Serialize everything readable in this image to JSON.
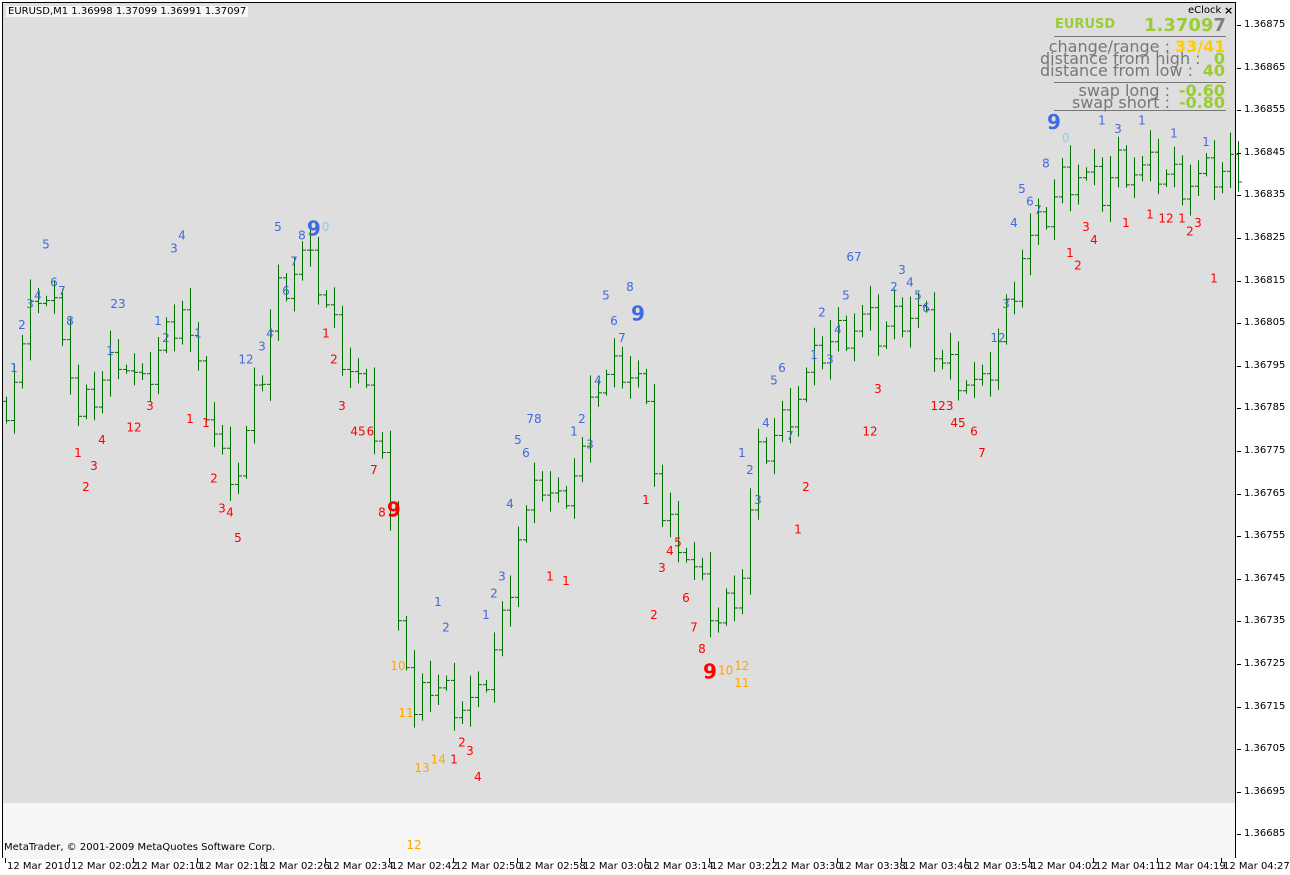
{
  "header": {
    "symbol_line": "EURUSD,M1  1.36998 1.37099 1.36991 1.37097"
  },
  "footer": {
    "copyright": "MetaTrader, © 2001-2009 MetaQuotes Software Corp."
  },
  "panel": {
    "title": "eClock",
    "close_icon": "close-x-icon",
    "symbol": "EURUSD",
    "price_main": "1.3709",
    "price_last_digit": "7",
    "rows": [
      {
        "label": "change/range :",
        "value": "33/41",
        "color": "#ffcc00"
      },
      {
        "label": "distance from high :",
        "value": "0",
        "color": "#9acd32"
      },
      {
        "label": "distance from low :",
        "value": "40",
        "color": "#9acd32"
      },
      {
        "label": "swap long :",
        "value": "-0.60",
        "color": "#9acd32"
      },
      {
        "label": "swap short :",
        "value": "-0.80",
        "color": "#9acd32"
      }
    ]
  },
  "colors": {
    "bar": "#007000",
    "background": "#dedede",
    "blue": "#4169e1",
    "red": "#ff0000",
    "orange": "#ffa500",
    "lightblue": "#87cefa",
    "symbol": "#9acd32"
  },
  "chart_data": {
    "type": "ohlc-bar",
    "symbol": "EURUSD",
    "timeframe": "M1",
    "grid": false,
    "ylim": [
      1.36685,
      1.36875
    ],
    "price_ticks": [
      "1.36875",
      "1.36865",
      "1.36855",
      "1.36845",
      "1.36835",
      "1.36825",
      "1.36815",
      "1.36805",
      "1.36795",
      "1.36785",
      "1.36775",
      "1.36765",
      "1.36755",
      "1.36745",
      "1.36735",
      "1.36725",
      "1.36715",
      "1.36705",
      "1.36695",
      "1.36685"
    ],
    "time_ticks": [
      "12 Mar 2010",
      "12 Mar 02:02",
      "12 Mar 02:10",
      "12 Mar 02:18",
      "12 Mar 02:26",
      "12 Mar 02:34",
      "12 Mar 02:42",
      "12 Mar 02:50",
      "12 Mar 02:58",
      "12 Mar 03:06",
      "12 Mar 03:14",
      "12 Mar 03:22",
      "12 Mar 03:30",
      "12 Mar 03:38",
      "12 Mar 03:46",
      "12 Mar 03:54",
      "12 Mar 04:02",
      "12 Mar 04:11",
      "12 Mar 04:19",
      "12 Mar 04:27"
    ],
    "start_time": "01:54",
    "price_path": [
      [
        "01:54",
        1.36787
      ],
      [
        "01:56",
        1.36799
      ],
      [
        "01:58",
        1.36813
      ],
      [
        "02:01",
        1.36806
      ],
      [
        "02:03",
        1.36782
      ],
      [
        "02:06",
        1.36792
      ],
      [
        "02:08",
        1.36799
      ],
      [
        "02:11",
        1.36789
      ],
      [
        "02:13",
        1.36799
      ],
      [
        "02:16",
        1.3681
      ],
      [
        "02:18",
        1.36792
      ],
      [
        "02:21",
        1.36773
      ],
      [
        "02:23",
        1.36771
      ],
      [
        "02:26",
        1.36794
      ],
      [
        "02:28",
        1.36813
      ],
      [
        "02:31",
        1.36821
      ],
      [
        "02:33",
        1.36815
      ],
      [
        "02:36",
        1.36799
      ],
      [
        "02:38",
        1.36792
      ],
      [
        "02:41",
        1.36775
      ],
      [
        "02:43",
        1.3674
      ],
      [
        "02:45",
        1.36712
      ],
      [
        "02:47",
        1.36721
      ],
      [
        "02:51",
        1.36716
      ],
      [
        "02:53",
        1.36716
      ],
      [
        "02:56",
        1.36735
      ],
      [
        "02:58",
        1.36756
      ],
      [
        "03:01",
        1.36768
      ],
      [
        "03:03",
        1.36763
      ],
      [
        "03:06",
        1.36775
      ],
      [
        "03:08",
        1.36792
      ],
      [
        "03:11",
        1.36796
      ],
      [
        "03:13",
        1.36792
      ],
      [
        "03:15",
        1.36773
      ],
      [
        "03:16",
        1.36759
      ],
      [
        "03:18",
        1.36756
      ],
      [
        "03:21",
        1.36742
      ],
      [
        "03:23",
        1.36735
      ],
      [
        "03:26",
        1.36747
      ],
      [
        "03:28",
        1.36773
      ],
      [
        "03:31",
        1.36782
      ],
      [
        "03:33",
        1.36789
      ],
      [
        "03:36",
        1.36799
      ],
      [
        "03:38",
        1.36803
      ],
      [
        "03:41",
        1.36806
      ],
      [
        "03:43",
        1.36803
      ],
      [
        "03:46",
        1.36808
      ],
      [
        "03:48",
        1.36808
      ],
      [
        "03:51",
        1.36796
      ],
      [
        "03:53",
        1.36794
      ],
      [
        "03:56",
        1.36789
      ],
      [
        "03:58",
        1.36801
      ],
      [
        "04:01",
        1.36822
      ],
      [
        "04:03",
        1.36827
      ],
      [
        "04:06",
        1.36839
      ],
      [
        "04:08",
        1.36841
      ],
      [
        "04:11",
        1.36836
      ],
      [
        "04:13",
        1.36843
      ],
      [
        "04:16",
        1.36841
      ],
      [
        "04:18",
        1.36841
      ],
      [
        "04:21",
        1.36839
      ],
      [
        "04:23",
        1.36839
      ],
      [
        "04:26",
        1.36841
      ],
      [
        "04:28",
        1.36843
      ]
    ],
    "count_labels": [
      [
        "01:55",
        1.36795,
        "1",
        "blue"
      ],
      [
        "01:56",
        1.36805,
        "2",
        "blue"
      ],
      [
        "01:57",
        1.3681,
        "3",
        "blue"
      ],
      [
        "01:58",
        1.36812,
        "4",
        "blue"
      ],
      [
        "01:59",
        1.36824,
        "5",
        "blue"
      ],
      [
        "02:00",
        1.36815,
        "6",
        "blue"
      ],
      [
        "02:01",
        1.36813,
        "7",
        "blue"
      ],
      [
        "02:02",
        1.36806,
        "8",
        "blue"
      ],
      [
        "02:03",
        1.36775,
        "1",
        "red"
      ],
      [
        "02:04",
        1.36767,
        "2",
        "red"
      ],
      [
        "02:05",
        1.36772,
        "3",
        "red"
      ],
      [
        "02:06",
        1.36778,
        "4",
        "red"
      ],
      [
        "02:07",
        1.36799,
        "1",
        "blue"
      ],
      [
        "02:08",
        1.3681,
        "23",
        "blue"
      ],
      [
        "02:10",
        1.36781,
        "12",
        "red"
      ],
      [
        "02:12",
        1.36786,
        "3",
        "red"
      ],
      [
        "02:13",
        1.36806,
        "1",
        "blue"
      ],
      [
        "02:14",
        1.36802,
        "2",
        "blue"
      ],
      [
        "02:15",
        1.36823,
        "3",
        "blue"
      ],
      [
        "02:16",
        1.36826,
        "4",
        "blue"
      ],
      [
        "02:17",
        1.36783,
        "1",
        "red"
      ],
      [
        "02:18",
        1.36803,
        "1",
        "blue"
      ],
      [
        "02:19",
        1.36782,
        "1",
        "red"
      ],
      [
        "02:20",
        1.36769,
        "2",
        "red"
      ],
      [
        "02:21",
        1.36762,
        "3",
        "red"
      ],
      [
        "02:22",
        1.36761,
        "4",
        "red"
      ],
      [
        "02:23",
        1.36755,
        "5",
        "red"
      ],
      [
        "02:24",
        1.36797,
        "12",
        "blue"
      ],
      [
        "02:26",
        1.368,
        "3",
        "blue"
      ],
      [
        "02:27",
        1.36803,
        "4",
        "blue"
      ],
      [
        "02:28",
        1.36828,
        "5",
        "blue"
      ],
      [
        "02:29",
        1.36813,
        "6",
        "blue"
      ],
      [
        "02:30",
        1.3682,
        "7",
        "blue"
      ],
      [
        "02:31",
        1.36826,
        "8",
        "blue"
      ],
      [
        "02:32",
        1.36827,
        "9",
        "blue",
        "big"
      ],
      [
        "02:33",
        1.36828,
        "0",
        "lightblue"
      ],
      [
        "02:34",
        1.36803,
        "1",
        "red"
      ],
      [
        "02:35",
        1.36797,
        "2",
        "red"
      ],
      [
        "02:36",
        1.36786,
        "3",
        "red"
      ],
      [
        "02:38",
        1.3678,
        "45",
        "red"
      ],
      [
        "02:39",
        1.3678,
        "6",
        "red"
      ],
      [
        "02:40",
        1.36771,
        "7",
        "red"
      ],
      [
        "02:41",
        1.36761,
        "8",
        "red"
      ],
      [
        "02:42",
        1.36761,
        "9",
        "red",
        "big"
      ],
      [
        "02:43",
        1.36725,
        "10",
        "orange"
      ],
      [
        "02:44",
        1.36714,
        "11",
        "orange"
      ],
      [
        "02:45",
        1.36683,
        "12",
        "orange"
      ],
      [
        "02:46",
        1.36701,
        "13",
        "orange"
      ],
      [
        "02:47",
        1.36703,
        "14",
        "orange"
      ],
      [
        "02:48",
        1.3674,
        "1",
        "blue"
      ],
      [
        "02:49",
        1.36734,
        "2",
        "blue"
      ],
      [
        "02:50",
        1.36703,
        "1",
        "red"
      ],
      [
        "02:51",
        1.36707,
        "2",
        "red"
      ],
      [
        "02:52",
        1.36705,
        "3",
        "red"
      ],
      [
        "02:53",
        1.36699,
        "4",
        "red"
      ],
      [
        "02:54",
        1.36737,
        "1",
        "blue"
      ],
      [
        "02:55",
        1.36742,
        "2",
        "blue"
      ],
      [
        "02:56",
        1.36746,
        "3",
        "blue"
      ],
      [
        "02:57",
        1.36763,
        "4",
        "blue"
      ],
      [
        "02:58",
        1.36778,
        "5",
        "blue"
      ],
      [
        "02:59",
        1.36775,
        "6",
        "blue"
      ],
      [
        "03:00",
        1.36783,
        "78",
        "blue"
      ],
      [
        "03:02",
        1.36746,
        "1",
        "red"
      ],
      [
        "03:04",
        1.36745,
        "1",
        "red"
      ],
      [
        "03:05",
        1.3678,
        "1",
        "blue"
      ],
      [
        "03:06",
        1.36783,
        "2",
        "blue"
      ],
      [
        "03:07",
        1.36777,
        "3",
        "blue"
      ],
      [
        "03:08",
        1.36792,
        "4",
        "blue"
      ],
      [
        "03:09",
        1.36812,
        "5",
        "blue"
      ],
      [
        "03:10",
        1.36806,
        "6",
        "blue"
      ],
      [
        "03:11",
        1.36802,
        "7",
        "blue"
      ],
      [
        "03:12",
        1.36814,
        "8",
        "blue"
      ],
      [
        "03:13",
        1.36807,
        "9",
        "blue",
        "big"
      ],
      [
        "03:14",
        1.36764,
        "1",
        "red"
      ],
      [
        "03:15",
        1.36737,
        "2",
        "red"
      ],
      [
        "03:16",
        1.36748,
        "3",
        "red"
      ],
      [
        "03:17",
        1.36752,
        "4",
        "red"
      ],
      [
        "03:18",
        1.36754,
        "5",
        "red"
      ],
      [
        "03:19",
        1.36741,
        "6",
        "red"
      ],
      [
        "03:20",
        1.36734,
        "7",
        "red"
      ],
      [
        "03:21",
        1.36729,
        "8",
        "red"
      ],
      [
        "03:22",
        1.36723,
        "9",
        "red",
        "big"
      ],
      [
        "03:23",
        1.36724,
        "10",
        "orange"
      ],
      [
        "03:24",
        1.36721,
        "11",
        "orange"
      ],
      [
        "03:25",
        1.36725,
        "12",
        "orange"
      ],
      [
        "03:26",
        1.36775,
        "1",
        "blue"
      ],
      [
        "03:27",
        1.36771,
        "2",
        "blue"
      ],
      [
        "03:28",
        1.36764,
        "3",
        "blue"
      ],
      [
        "03:29",
        1.36782,
        "4",
        "blue"
      ],
      [
        "03:30",
        1.36792,
        "5",
        "blue"
      ],
      [
        "03:31",
        1.36795,
        "6",
        "blue"
      ],
      [
        "03:32",
        1.36779,
        "7",
        "blue"
      ],
      [
        "03:33",
        1.36757,
        "1",
        "red"
      ],
      [
        "03:34",
        1.36767,
        "2",
        "red"
      ],
      [
        "03:35",
        1.36798,
        "1",
        "blue"
      ],
      [
        "03:36",
        1.36808,
        "2",
        "blue"
      ],
      [
        "03:37",
        1.36797,
        "3",
        "blue"
      ],
      [
        "03:38",
        1.36804,
        "4",
        "blue"
      ],
      [
        "03:39",
        1.36812,
        "5",
        "blue"
      ],
      [
        "03:40",
        1.36821,
        "67",
        "blue"
      ],
      [
        "03:42",
        1.3678,
        "12",
        "red"
      ],
      [
        "03:43",
        1.3679,
        "3",
        "red"
      ],
      [
        "03:45",
        1.36814,
        "2",
        "blue"
      ],
      [
        "03:46",
        1.36818,
        "3",
        "blue"
      ],
      [
        "03:47",
        1.36815,
        "4",
        "blue"
      ],
      [
        "03:48",
        1.36812,
        "5",
        "blue"
      ],
      [
        "03:49",
        1.36809,
        "6",
        "blue"
      ],
      [
        "03:51",
        1.36786,
        "123",
        "red"
      ],
      [
        "03:53",
        1.36782,
        "45",
        "red"
      ],
      [
        "03:55",
        1.3678,
        "6",
        "red"
      ],
      [
        "03:56",
        1.36775,
        "7",
        "red"
      ],
      [
        "03:58",
        1.36802,
        "12",
        "blue"
      ],
      [
        "03:59",
        1.3681,
        "3",
        "blue"
      ],
      [
        "04:00",
        1.36829,
        "4",
        "blue"
      ],
      [
        "04:01",
        1.36837,
        "5",
        "blue"
      ],
      [
        "04:02",
        1.36834,
        "6",
        "blue"
      ],
      [
        "04:03",
        1.36832,
        "7",
        "blue"
      ],
      [
        "04:04",
        1.36843,
        "8",
        "blue"
      ],
      [
        "04:05",
        1.36852,
        "9",
        "blue",
        "big"
      ],
      [
        "04:06",
        1.36849,
        "0",
        "lightblue"
      ],
      [
        "04:07",
        1.36822,
        "1",
        "red"
      ],
      [
        "04:08",
        1.36819,
        "2",
        "red"
      ],
      [
        "04:09",
        1.36828,
        "3",
        "red"
      ],
      [
        "04:10",
        1.36825,
        "4",
        "red"
      ],
      [
        "04:11",
        1.36853,
        "1",
        "blue"
      ],
      [
        "04:13",
        1.36851,
        "3",
        "blue"
      ],
      [
        "04:14",
        1.36829,
        "1",
        "red"
      ],
      [
        "04:16",
        1.36853,
        "1",
        "blue"
      ],
      [
        "04:17",
        1.36831,
        "1",
        "red"
      ],
      [
        "04:19",
        1.3683,
        "12",
        "red"
      ],
      [
        "04:20",
        1.3685,
        "1",
        "blue"
      ],
      [
        "04:21",
        1.3683,
        "1",
        "red"
      ],
      [
        "04:22",
        1.36827,
        "2",
        "red"
      ],
      [
        "04:23",
        1.36829,
        "3",
        "red"
      ],
      [
        "04:24",
        1.36848,
        "1",
        "blue"
      ],
      [
        "04:25",
        1.36816,
        "1",
        "red"
      ]
    ]
  }
}
